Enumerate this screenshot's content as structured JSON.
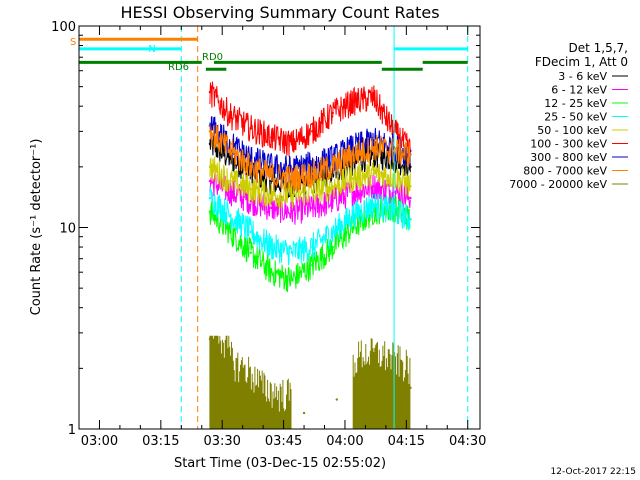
{
  "chart_data": {
    "type": "line",
    "title": "HESSI Observing Summary Count Rates",
    "xlabel": "Start Time (03-Dec-15 02:55:02)",
    "ylabel": "Count Rate (s⁻¹ detector⁻¹)",
    "yscale": "log",
    "ylim": [
      1,
      100
    ],
    "xlim": [
      "02:55",
      "04:33"
    ],
    "xticks": [
      "03:00",
      "03:15",
      "03:30",
      "03:45",
      "04:00",
      "04:15",
      "04:30"
    ],
    "yticks": [
      "1",
      "10",
      "100"
    ],
    "grid": false,
    "legend_position": "right",
    "legend_header": [
      "Det 1,5,7,",
      "FDecim 1, Att 0"
    ],
    "series": [
      {
        "name": "3 - 6 keV",
        "color": "#000000",
        "x": [
          "03:27",
          "03:32",
          "03:37",
          "03:42",
          "03:47",
          "03:52",
          "03:57",
          "04:02",
          "04:07",
          "04:12",
          "04:16"
        ],
        "y": [
          26,
          22,
          19,
          17,
          16,
          17,
          19,
          21,
          23,
          22,
          20
        ]
      },
      {
        "name": "6 - 12 keV",
        "color": "#ff00ff",
        "x": [
          "03:27",
          "03:32",
          "03:37",
          "03:42",
          "03:47",
          "03:52",
          "03:57",
          "04:02",
          "04:07",
          "04:12",
          "04:16"
        ],
        "y": [
          17,
          15,
          13.5,
          12.5,
          12,
          12.5,
          13.5,
          15,
          16,
          15,
          14
        ]
      },
      {
        "name": "12 - 25 keV",
        "color": "#00ff00",
        "x": [
          "03:27",
          "03:32",
          "03:37",
          "03:42",
          "03:47",
          "03:52",
          "03:57",
          "04:02",
          "04:07",
          "04:12",
          "04:16"
        ],
        "y": [
          12,
          9.5,
          7.5,
          6,
          5.5,
          6.5,
          8,
          10,
          12,
          12.5,
          11
        ]
      },
      {
        "name": "25 - 50 keV",
        "color": "#00ffff",
        "x": [
          "03:27",
          "03:32",
          "03:37",
          "03:42",
          "03:47",
          "03:52",
          "03:57",
          "04:02",
          "04:07",
          "04:12",
          "04:16"
        ],
        "y": [
          14,
          11.5,
          9.5,
          8,
          7.5,
          8,
          9.5,
          11.5,
          13,
          12,
          11
        ]
      },
      {
        "name": "50 - 100 keV",
        "color": "#cccc00",
        "x": [
          "03:27",
          "03:32",
          "03:37",
          "03:42",
          "03:47",
          "03:52",
          "03:57",
          "04:02",
          "04:07",
          "04:12",
          "04:16"
        ],
        "y": [
          20,
          17,
          15.5,
          14.5,
          14.5,
          15,
          16,
          17.5,
          18.5,
          18,
          16
        ]
      },
      {
        "name": "100 - 300 keV",
        "color": "#ff0000",
        "x": [
          "03:27",
          "03:32",
          "03:37",
          "03:42",
          "03:47",
          "03:52",
          "03:57",
          "04:02",
          "04:07",
          "04:12",
          "04:16"
        ],
        "y": [
          47,
          36,
          31,
          28,
          26,
          30,
          37,
          42,
          44,
          30,
          24
        ]
      },
      {
        "name": "300 - 800 keV",
        "color": "#0000cc",
        "x": [
          "03:27",
          "03:32",
          "03:37",
          "03:42",
          "03:47",
          "03:52",
          "03:57",
          "04:02",
          "04:07",
          "04:12",
          "04:16"
        ],
        "y": [
          32,
          26,
          22,
          20,
          19.5,
          20.5,
          22,
          25,
          27,
          25,
          23
        ]
      },
      {
        "name": "800 - 7000 keV",
        "color": "#ff8000",
        "x": [
          "03:27",
          "03:32",
          "03:37",
          "03:42",
          "03:47",
          "03:52",
          "03:57",
          "04:02",
          "04:07",
          "04:12",
          "04:16"
        ],
        "y": [
          30,
          24,
          20,
          18,
          17.5,
          18.5,
          20,
          23,
          25,
          24,
          23
        ]
      },
      {
        "name": "7000 - 20000 keV",
        "color": "#808000",
        "x": [
          "03:27",
          "03:30",
          "03:33",
          "03:36",
          "03:40",
          "03:44",
          "03:50",
          "03:58",
          "04:04",
          "04:08",
          "04:12",
          "04:16"
        ],
        "y": [
          2.8,
          2.3,
          1.7,
          1.6,
          1.3,
          1.2,
          1.2,
          1.4,
          1.9,
          1.9,
          1.8,
          1.6
        ]
      }
    ],
    "flags": [
      {
        "label": "S",
        "color": "#ff8000",
        "y": 86,
        "x": [
          "02:55",
          "03:24"
        ]
      },
      {
        "label": "N",
        "color": "#00ffff",
        "y": 77,
        "x": [
          "02:55",
          "03:20"
        ]
      },
      {
        "label": "",
        "color": "#00ffff",
        "y": 77,
        "x": [
          "04:12",
          "04:30"
        ]
      },
      {
        "label": "RD0",
        "color": "#008000",
        "y": 66,
        "x": [
          "02:55",
          "03:25",
          "03:28",
          "04:09"
        ]
      },
      {
        "label": "",
        "color": "#008000",
        "y": 66,
        "x": [
          "04:19",
          "04:30"
        ]
      },
      {
        "label": "RD6",
        "color": "#008000",
        "y": 61,
        "x": [
          "03:26",
          "03:31",
          "04:09",
          "04:19"
        ]
      }
    ],
    "vlines": [
      {
        "x": "02:55",
        "color": "#00ffff",
        "style": "solid"
      },
      {
        "x": "03:20",
        "color": "#00ffff",
        "style": "dashed"
      },
      {
        "x": "03:24",
        "color": "#ff8000",
        "style": "dashed"
      },
      {
        "x": "04:12",
        "color": "#00ffff",
        "style": "solid"
      },
      {
        "x": "04:30",
        "color": "#00ffff",
        "style": "dashed"
      }
    ],
    "timestamp": "12-Oct-2017 22:15"
  }
}
